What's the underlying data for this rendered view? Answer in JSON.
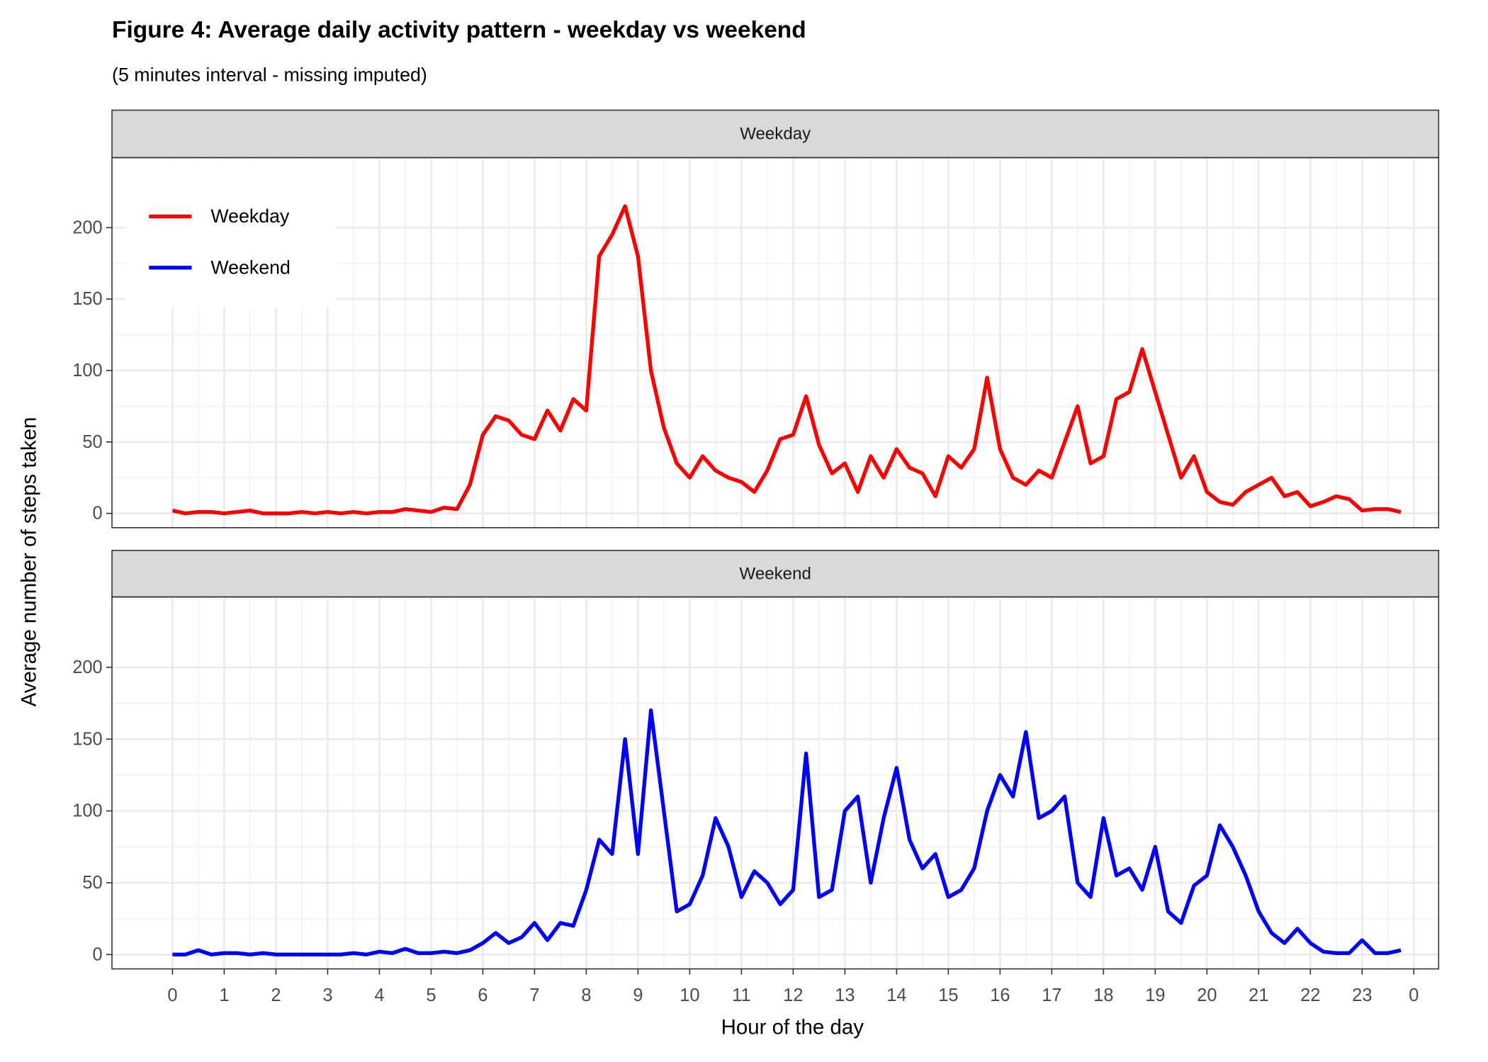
{
  "chart_data": {
    "type": "line",
    "title": "Figure 4: Average daily activity pattern - weekday vs weekend",
    "subtitle": "(5 minutes interval - missing imputed)",
    "xlabel": "Hour of the day",
    "ylabel": "Average number of steps taken",
    "x": [
      0,
      0.25,
      0.5,
      0.75,
      1,
      1.25,
      1.5,
      1.75,
      2,
      2.25,
      2.5,
      2.75,
      3,
      3.25,
      3.5,
      3.75,
      4,
      4.25,
      4.5,
      4.75,
      5,
      5.25,
      5.5,
      5.75,
      6,
      6.25,
      6.5,
      6.75,
      7,
      7.25,
      7.5,
      7.75,
      8,
      8.25,
      8.5,
      8.75,
      9,
      9.25,
      9.5,
      9.75,
      10,
      10.25,
      10.5,
      10.75,
      11,
      11.25,
      11.5,
      11.75,
      12,
      12.25,
      12.5,
      12.75,
      13,
      13.25,
      13.5,
      13.75,
      14,
      14.25,
      14.5,
      14.75,
      15,
      15.25,
      15.5,
      15.75,
      16,
      16.25,
      16.5,
      16.75,
      17,
      17.25,
      17.5,
      17.75,
      18,
      18.25,
      18.5,
      18.75,
      19,
      19.25,
      19.5,
      19.75,
      20,
      20.25,
      20.5,
      20.75,
      21,
      21.25,
      21.5,
      21.75,
      22,
      22.25,
      22.5,
      22.75,
      23,
      23.25,
      23.5,
      23.75
    ],
    "series": [
      {
        "name": "Weekday",
        "color": "#ff0000",
        "values": [
          2,
          0,
          1,
          1,
          0,
          1,
          2,
          0,
          0,
          0,
          1,
          0,
          1,
          0,
          1,
          0,
          1,
          1,
          3,
          2,
          1,
          4,
          3,
          20,
          55,
          68,
          65,
          55,
          52,
          72,
          58,
          80,
          72,
          180,
          195,
          215,
          180,
          100,
          60,
          35,
          25,
          40,
          30,
          25,
          22,
          15,
          30,
          52,
          55,
          82,
          48,
          28,
          35,
          15,
          40,
          25,
          45,
          32,
          28,
          12,
          40,
          32,
          45,
          95,
          45,
          25,
          20,
          30,
          25,
          50,
          75,
          35,
          40,
          80,
          85,
          115,
          85,
          55,
          25,
          40,
          15,
          8,
          6,
          15,
          20,
          25,
          12,
          15,
          5,
          8,
          12,
          10,
          2,
          3,
          3,
          1
        ]
      },
      {
        "name": "Weekend",
        "color": "#0000ff",
        "values": [
          0,
          0,
          3,
          0,
          1,
          1,
          0,
          1,
          0,
          0,
          0,
          0,
          0,
          0,
          1,
          0,
          2,
          1,
          4,
          1,
          1,
          2,
          1,
          3,
          8,
          15,
          8,
          12,
          22,
          10,
          22,
          20,
          45,
          80,
          70,
          150,
          70,
          170,
          100,
          30,
          35,
          55,
          95,
          75,
          40,
          58,
          50,
          35,
          45,
          140,
          40,
          45,
          100,
          110,
          50,
          95,
          130,
          80,
          60,
          70,
          40,
          45,
          60,
          100,
          125,
          110,
          155,
          95,
          100,
          110,
          50,
          40,
          95,
          55,
          60,
          45,
          75,
          30,
          22,
          48,
          55,
          90,
          75,
          55,
          30,
          15,
          8,
          18,
          8,
          2,
          1,
          1,
          10,
          1,
          1,
          3
        ]
      }
    ],
    "xlim": [
      -1.17,
      24.48
    ],
    "xticks": [
      0,
      1,
      2,
      3,
      4,
      5,
      6,
      7,
      8,
      9,
      10,
      11,
      12,
      13,
      14,
      15,
      16,
      17,
      18,
      19,
      20,
      21,
      22,
      23,
      {
        "value": 24,
        "label": "0"
      }
    ],
    "ylim": [
      -10,
      249
    ],
    "yticks": [
      0,
      50,
      100,
      150,
      200
    ],
    "grid": true,
    "legend": "top-left"
  }
}
